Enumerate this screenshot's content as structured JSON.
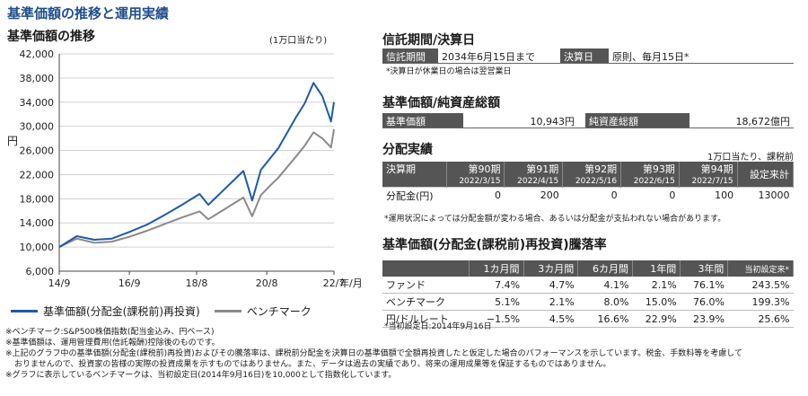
{
  "page_title": "基準価額の推移と運用実績",
  "chart_panel": {
    "heading": "基準価額の推移",
    "unit": "(1万口当たり)",
    "yaxis_label": "円",
    "xaxis_unit": "年/月",
    "legend": {
      "fund": "基準価額(分配金(課税前)再投資)",
      "benchmark": "ベンチマーク"
    }
  },
  "colors": {
    "fund": "#1f5aa6",
    "benchmark": "#8a8a8a",
    "header_bg": "#555555",
    "title": "#1f4e8c"
  },
  "chart_data": {
    "type": "line",
    "xlabel": "年/月",
    "ylabel": "円",
    "ylim": [
      6000,
      42000
    ],
    "yticks": [
      "6,000",
      "10,000",
      "14,000",
      "18,000",
      "22,000",
      "26,000",
      "30,000",
      "34,000",
      "38,000",
      "42,000"
    ],
    "xticks": [
      "14/9",
      "16/9",
      "18/8",
      "20/8",
      "22/7"
    ],
    "x": [
      "2014/9",
      "2015/3",
      "2015/9",
      "2016/3",
      "2016/9",
      "2017/3",
      "2017/9",
      "2018/3",
      "2018/9",
      "2018/12",
      "2019/6",
      "2019/12",
      "2020/3",
      "2020/6",
      "2020/9",
      "2020/12",
      "2021/6",
      "2021/9",
      "2021/12",
      "2022/3",
      "2022/6",
      "2022/7"
    ],
    "series": [
      {
        "name": "基準価額(分配金(課税前)再投資)",
        "values": [
          10000,
          11800,
          11200,
          11400,
          12500,
          13700,
          15300,
          17000,
          18800,
          17000,
          19800,
          22600,
          17700,
          22800,
          24600,
          26400,
          31500,
          33800,
          37200,
          35000,
          30800,
          34000
        ]
      },
      {
        "name": "ベンチマーク",
        "values": [
          10000,
          11400,
          10700,
          10900,
          11700,
          12700,
          13800,
          14900,
          15900,
          14600,
          16400,
          18200,
          15100,
          18600,
          20100,
          21500,
          25000,
          26800,
          29000,
          28000,
          26500,
          29500
        ]
      }
    ],
    "legend": "bottom"
  },
  "trust": {
    "title": "信託期間/決算日",
    "period_label": "信託期間",
    "period_value": "2034年6月15日まで",
    "settle_label": "決算日",
    "settle_value": "原則、毎月15日*",
    "note": "*決算日が休業日の場合は翌営業日"
  },
  "nav": {
    "title": "基準価額/純資産総額",
    "nav_label": "基準価額",
    "nav_value": "10,943円",
    "aum_label": "純資産総額",
    "aum_value": "18,672億円"
  },
  "distribution": {
    "title": "分配実績",
    "unit": "1万口当たり、課税前",
    "header_label": "決算期",
    "periods": [
      "第90期",
      "第91期",
      "第92期",
      "第93期",
      "第94期"
    ],
    "dates": [
      "2022/3/15",
      "2022/4/15",
      "2022/5/16",
      "2022/6/15",
      "2022/7/15"
    ],
    "total_label": "設定来計",
    "row_label": "分配金(円)",
    "values": [
      "0",
      "200",
      "0",
      "0",
      "100"
    ],
    "total_value": "13000",
    "note": "*運用状況によっては分配金額が変わる場合、あるいは分配金が支払われない場合があります。"
  },
  "performance": {
    "title": "基準価額(分配金(課税前)再投資)騰落率",
    "columns": [
      "1カ月間",
      "3カ月間",
      "6カ月間",
      "1年間",
      "3年間",
      "当初設定来*"
    ],
    "rows": [
      {
        "label": "ファンド",
        "values": [
          "7.4%",
          "4.7%",
          "4.1%",
          "2.1%",
          "76.1%",
          "243.5%"
        ]
      },
      {
        "label": "ベンチマーク",
        "values": [
          "5.1%",
          "2.1%",
          "8.0%",
          "15.0%",
          "76.0%",
          "199.3%"
        ]
      },
      {
        "label": "円/ドルレート",
        "values": [
          "−1.5%",
          "4.5%",
          "16.6%",
          "22.9%",
          "23.9%",
          "25.6%"
        ]
      }
    ],
    "note": "*当初設定日:2014年9月16日"
  },
  "footnotes": [
    "※ベンチマーク:S&P500株価指数(配当金込み、円ベース)",
    "※基準価額は、運用管理費用(信託報酬)控除後のものです。",
    "※上記のグラフ中の基準価額(分配金(課税前)再投資)およびその騰落率は、課税前分配金を決算日の基準価額で全額再投資したと仮定した場合のパフォーマンスを示しています。税金、手数料等を考慮して",
    "おりませんので、投資家の皆様の実際の投資成果を示すものではありません。また、データは過去の実績であり、将来の運用成果等を保証するものではありません。",
    "※グラフに表示しているベンチマークは、当初設定日(2014年9月16日)を10,000として指数化しています。"
  ]
}
